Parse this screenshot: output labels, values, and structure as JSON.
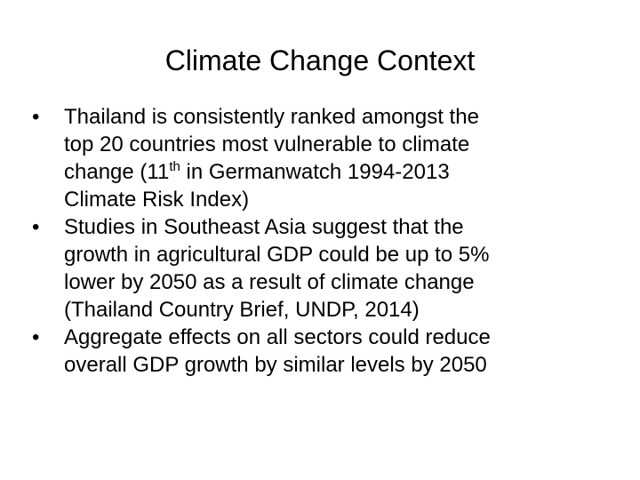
{
  "slide": {
    "title": "Climate Change Context",
    "bullet_marker": "•",
    "bullets": [
      {
        "lines": [
          "Thailand is consistently ranked amongst the",
          "top 20 countries most vulnerable to climate"
        ],
        "line3_prefix": "change (11",
        "line3_sup": "th",
        "line3_suffix": " in Germanwatch 1994-2013",
        "line4": "Climate Risk Index)"
      },
      {
        "lines": [
          "Studies in Southeast Asia suggest that the",
          "growth in agricultural GDP could be up to 5%",
          "lower by 2050 as a result of climate change",
          "(Thailand Country Brief, UNDP, 2014)"
        ]
      },
      {
        "lines": [
          "Aggregate effects on all sectors could reduce",
          "overall GDP growth by similar levels by 2050"
        ]
      }
    ]
  }
}
